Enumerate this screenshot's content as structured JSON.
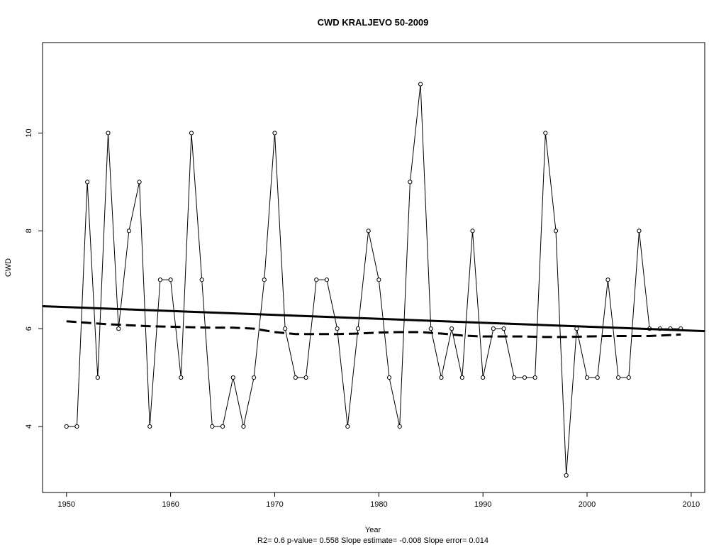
{
  "chart_data": {
    "type": "line",
    "title": "CWD   KRALJEVO 50-2009",
    "xlabel": "Year",
    "ylabel": "CWD",
    "footer": "R2= 0.6  p-value= 0.558  Slope estimate= -0.008  Slope error= 0.014",
    "xlim": [
      1947.7,
      2011.3
    ],
    "ylim": [
      2.65,
      11.85
    ],
    "xticks": [
      1950,
      1960,
      1970,
      1980,
      1990,
      2000,
      2010
    ],
    "yticks": [
      4,
      6,
      8,
      10
    ],
    "grid": false,
    "series": [
      {
        "style": "line-with-open-points",
        "x": [
          1950,
          1951,
          1952,
          1953,
          1954,
          1955,
          1956,
          1957,
          1958,
          1959,
          1960,
          1961,
          1962,
          1963,
          1964,
          1965,
          1966,
          1967,
          1968,
          1969,
          1970,
          1971,
          1972,
          1973,
          1974,
          1975,
          1976,
          1977,
          1978,
          1979,
          1980,
          1981,
          1982,
          1983,
          1984,
          1985,
          1986,
          1987,
          1988,
          1989,
          1990,
          1991,
          1992,
          1993,
          1994,
          1995,
          1996,
          1997,
          1998,
          1999,
          2000,
          2001,
          2002,
          2003,
          2004,
          2005,
          2006,
          2007,
          2008,
          2009
        ],
        "values": [
          4,
          4,
          9,
          5,
          10,
          6,
          8,
          9,
          4,
          7,
          7,
          5,
          10,
          7,
          4,
          4,
          5,
          4,
          5,
          7,
          10,
          6,
          5,
          5,
          7,
          7,
          6,
          4,
          6,
          8,
          7,
          5,
          4,
          9,
          11,
          6,
          5,
          6,
          5,
          8,
          5,
          6,
          6,
          5,
          5,
          5,
          10,
          8,
          3,
          6,
          5,
          5,
          7,
          5,
          5,
          8,
          6,
          6,
          6,
          6
        ]
      },
      {
        "style": "solid-trend",
        "x": [
          1947.7,
          2011.3
        ],
        "values": [
          6.46,
          5.95
        ]
      },
      {
        "style": "dashed-smooth",
        "x": [
          1950,
          1952,
          1954,
          1956,
          1958,
          1960,
          1962,
          1964,
          1966,
          1968,
          1970,
          1972,
          1974,
          1976,
          1978,
          1980,
          1982,
          1984,
          1986,
          1988,
          1990,
          1992,
          1994,
          1996,
          1998,
          2000,
          2002,
          2004,
          2006,
          2008,
          2009
        ],
        "values": [
          6.15,
          6.12,
          6.09,
          6.07,
          6.05,
          6.04,
          6.03,
          6.02,
          6.02,
          6.0,
          5.93,
          5.89,
          5.89,
          5.89,
          5.9,
          5.92,
          5.93,
          5.93,
          5.9,
          5.86,
          5.84,
          5.84,
          5.84,
          5.83,
          5.83,
          5.84,
          5.85,
          5.85,
          5.85,
          5.87,
          5.88
        ]
      }
    ]
  }
}
